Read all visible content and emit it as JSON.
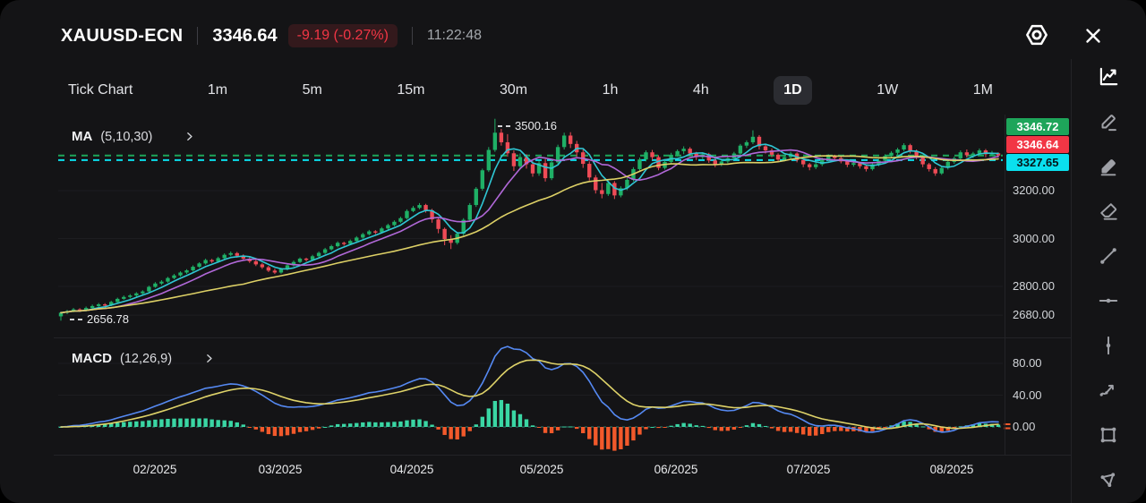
{
  "header": {
    "symbol": "XAUUSD-ECN",
    "price": "3346.64",
    "change": "-9.19 (-0.27%)",
    "time": "11:22:48"
  },
  "tabs": {
    "items": [
      {
        "label": "Tick Chart",
        "active": false
      },
      {
        "label": "1m",
        "active": false
      },
      {
        "label": "5m",
        "active": false
      },
      {
        "label": "15m",
        "active": false
      },
      {
        "label": "30m",
        "active": false
      },
      {
        "label": "1h",
        "active": false
      },
      {
        "label": "4h",
        "active": false
      },
      {
        "label": "1D",
        "active": true
      },
      {
        "label": "1W",
        "active": false
      },
      {
        "label": "1M",
        "active": false
      }
    ]
  },
  "indicators": {
    "ma": {
      "name": "MA",
      "params": "(5,10,30)"
    },
    "macd": {
      "name": "MACD",
      "params": "(12,26,9)"
    }
  },
  "annotations": {
    "high": "3500.16",
    "low": "2656.78"
  },
  "price_axis": {
    "badges": [
      {
        "text": "3346.72",
        "kind": "up"
      },
      {
        "text": "3346.64",
        "kind": "last"
      },
      {
        "text": "3327.65",
        "kind": "ref"
      }
    ]
  },
  "toolbar": {
    "tools": [
      {
        "name": "chart-style",
        "icon": "line-chart",
        "active": true
      },
      {
        "name": "draw",
        "icon": "pencil",
        "active": false
      },
      {
        "name": "draw-alt",
        "icon": "pencil-underline",
        "active": false
      },
      {
        "name": "eraser",
        "icon": "eraser",
        "active": false
      },
      {
        "name": "trend-line",
        "icon": "trend-line",
        "active": false
      },
      {
        "name": "horizontal-line",
        "icon": "horizontal-line",
        "active": false
      },
      {
        "name": "vertical-line",
        "icon": "vertical-line",
        "active": false
      },
      {
        "name": "trend-arrow",
        "icon": "trend-arrow",
        "active": false
      },
      {
        "name": "rectangle",
        "icon": "rectangle",
        "active": false
      },
      {
        "name": "polygon",
        "icon": "polygon",
        "active": false
      }
    ]
  },
  "colors": {
    "up": "#1fb066",
    "down": "#ee4b56",
    "ma5": "#2fc7d4",
    "ma10": "#b168d8",
    "ma30": "#ddd066",
    "macd_line": "#5589f2",
    "macd_signal": "#ded269",
    "hist_up": "#3ad6a4",
    "hist_down": "#f2592b",
    "level_ask": "#1ea55a",
    "level_ref": "#0ae0ee",
    "grid": "#1d1d20",
    "zero_line": "#2e8f7f"
  },
  "chart_data": {
    "type": "candlestick+macd",
    "symbol": "XAUUSD-ECN",
    "timeframe": "1D",
    "title": "XAUUSD-ECN daily candles with MA(5,10,30) overlay and MACD(12,26,9) subpanel",
    "x_labels": [
      "02/2025",
      "03/2025",
      "04/2025",
      "05/2025",
      "06/2025",
      "07/2025",
      "08/2025"
    ],
    "price_ticks": [
      3200,
      3000,
      2800,
      2680
    ],
    "macd_ticks": [
      80,
      40,
      0
    ],
    "levels": {
      "ask": 3346.72,
      "last": 3346.64,
      "ref": 3327.65
    },
    "high_annotation": 3500.16,
    "low_annotation": 2656.78,
    "ma_periods": [
      5,
      10,
      30
    ],
    "macd_params": [
      12,
      26,
      9
    ],
    "legend_position": "top-left",
    "grid": "subtle",
    "candles": [
      [
        2675,
        2695,
        2656.78,
        2690
      ],
      [
        2690,
        2702,
        2684,
        2697
      ],
      [
        2697,
        2710,
        2692,
        2704
      ],
      [
        2704,
        2709,
        2693,
        2699
      ],
      [
        2699,
        2716,
        2695,
        2710
      ],
      [
        2710,
        2724,
        2706,
        2718
      ],
      [
        2718,
        2731,
        2713,
        2725
      ],
      [
        2725,
        2730,
        2714,
        2721
      ],
      [
        2721,
        2740,
        2717,
        2735
      ],
      [
        2735,
        2753,
        2731,
        2748
      ],
      [
        2748,
        2762,
        2744,
        2756
      ],
      [
        2756,
        2768,
        2750,
        2762
      ],
      [
        2762,
        2776,
        2757,
        2771
      ],
      [
        2771,
        2784,
        2766,
        2779
      ],
      [
        2779,
        2803,
        2775,
        2798
      ],
      [
        2798,
        2818,
        2794,
        2812
      ],
      [
        2812,
        2826,
        2806,
        2820
      ],
      [
        2820,
        2840,
        2815,
        2835
      ],
      [
        2835,
        2852,
        2830,
        2846
      ],
      [
        2846,
        2863,
        2841,
        2858
      ],
      [
        2858,
        2872,
        2852,
        2867
      ],
      [
        2867,
        2888,
        2862,
        2882
      ],
      [
        2882,
        2901,
        2877,
        2896
      ],
      [
        2896,
        2916,
        2891,
        2910
      ],
      [
        2910,
        2915,
        2898,
        2904
      ],
      [
        2904,
        2924,
        2899,
        2918
      ],
      [
        2918,
        2938,
        2913,
        2932
      ],
      [
        2932,
        2946,
        2926,
        2939
      ],
      [
        2939,
        2944,
        2920,
        2928
      ],
      [
        2928,
        2934,
        2909,
        2916
      ],
      [
        2916,
        2922,
        2898,
        2905
      ],
      [
        2905,
        2911,
        2885,
        2892
      ],
      [
        2892,
        2898,
        2873,
        2880
      ],
      [
        2880,
        2886,
        2860,
        2866
      ],
      [
        2866,
        2874,
        2852,
        2858
      ],
      [
        2858,
        2878,
        2853,
        2872
      ],
      [
        2872,
        2894,
        2867,
        2888
      ],
      [
        2888,
        2908,
        2883,
        2902
      ],
      [
        2902,
        2921,
        2897,
        2916
      ],
      [
        2916,
        2920,
        2904,
        2911
      ],
      [
        2911,
        2932,
        2906,
        2926
      ],
      [
        2926,
        2946,
        2921,
        2940
      ],
      [
        2940,
        2961,
        2935,
        2955
      ],
      [
        2955,
        2974,
        2950,
        2968
      ],
      [
        2968,
        2988,
        2963,
        2982
      ],
      [
        2982,
        2987,
        2970,
        2978
      ],
      [
        2978,
        2996,
        2973,
        2990
      ],
      [
        2990,
        3010,
        2985,
        3004
      ],
      [
        3004,
        3024,
        2999,
        3018
      ],
      [
        3018,
        3036,
        3013,
        3030
      ],
      [
        3030,
        3035,
        3018,
        3026
      ],
      [
        3026,
        3048,
        3021,
        3042
      ],
      [
        3042,
        3062,
        3037,
        3056
      ],
      [
        3056,
        3076,
        3051,
        3070
      ],
      [
        3070,
        3091,
        3065,
        3085
      ],
      [
        3085,
        3122,
        3080,
        3115
      ],
      [
        3115,
        3136,
        3110,
        3128
      ],
      [
        3128,
        3148,
        3122,
        3140
      ],
      [
        3140,
        3145,
        3108,
        3118
      ],
      [
        3118,
        3124,
        3066,
        3080
      ],
      [
        3080,
        3086,
        3022,
        3040
      ],
      [
        3040,
        3046,
        2972,
        2998
      ],
      [
        2998,
        3014,
        2956,
        2982
      ],
      [
        2982,
        3028,
        2975,
        3020
      ],
      [
        3020,
        3085,
        3012,
        3078
      ],
      [
        3078,
        3148,
        3070,
        3140
      ],
      [
        3140,
        3215,
        3132,
        3208
      ],
      [
        3208,
        3292,
        3200,
        3285
      ],
      [
        3285,
        3382,
        3278,
        3370
      ],
      [
        3370,
        3500.16,
        3362,
        3442
      ],
      [
        3442,
        3458,
        3388,
        3402
      ],
      [
        3402,
        3436,
        3342,
        3356
      ],
      [
        3356,
        3368,
        3282,
        3302
      ],
      [
        3302,
        3355,
        3288,
        3340
      ],
      [
        3340,
        3352,
        3292,
        3310
      ],
      [
        3310,
        3322,
        3258,
        3272
      ],
      [
        3272,
        3325,
        3262,
        3315
      ],
      [
        3315,
        3332,
        3238,
        3252
      ],
      [
        3252,
        3328,
        3244,
        3318
      ],
      [
        3318,
        3392,
        3310,
        3382
      ],
      [
        3382,
        3442,
        3372,
        3430
      ],
      [
        3430,
        3444,
        3378,
        3395
      ],
      [
        3395,
        3408,
        3342,
        3360
      ],
      [
        3360,
        3372,
        3295,
        3312
      ],
      [
        3312,
        3322,
        3242,
        3255
      ],
      [
        3255,
        3265,
        3188,
        3202
      ],
      [
        3202,
        3232,
        3168,
        3186
      ],
      [
        3186,
        3242,
        3178,
        3232
      ],
      [
        3232,
        3240,
        3165,
        3180
      ],
      [
        3180,
        3218,
        3172,
        3210
      ],
      [
        3210,
        3252,
        3202,
        3245
      ],
      [
        3245,
        3298,
        3238,
        3290
      ],
      [
        3290,
        3338,
        3282,
        3330
      ],
      [
        3330,
        3368,
        3322,
        3360
      ],
      [
        3360,
        3370,
        3328,
        3340
      ],
      [
        3340,
        3348,
        3285,
        3295
      ],
      [
        3295,
        3328,
        3288,
        3320
      ],
      [
        3320,
        3358,
        3312,
        3350
      ],
      [
        3350,
        3372,
        3342,
        3365
      ],
      [
        3365,
        3385,
        3352,
        3375
      ],
      [
        3375,
        3382,
        3345,
        3355
      ],
      [
        3355,
        3362,
        3328,
        3340
      ],
      [
        3340,
        3360,
        3332,
        3352
      ],
      [
        3352,
        3358,
        3316,
        3326
      ],
      [
        3326,
        3334,
        3298,
        3310
      ],
      [
        3310,
        3330,
        3302,
        3322
      ],
      [
        3322,
        3342,
        3314,
        3335
      ],
      [
        3335,
        3362,
        3327,
        3355
      ],
      [
        3355,
        3395,
        3348,
        3388
      ],
      [
        3388,
        3410,
        3378,
        3402
      ],
      [
        3402,
        3452,
        3394,
        3425
      ],
      [
        3425,
        3432,
        3372,
        3385
      ],
      [
        3385,
        3392,
        3355,
        3368
      ],
      [
        3368,
        3376,
        3340,
        3350
      ],
      [
        3350,
        3356,
        3318,
        3330
      ],
      [
        3330,
        3348,
        3322,
        3340
      ],
      [
        3340,
        3362,
        3332,
        3355
      ],
      [
        3355,
        3360,
        3318,
        3328
      ],
      [
        3328,
        3335,
        3298,
        3310
      ],
      [
        3310,
        3316,
        3285,
        3298
      ],
      [
        3298,
        3318,
        3290,
        3310
      ],
      [
        3310,
        3338,
        3302,
        3330
      ],
      [
        3330,
        3352,
        3322,
        3345
      ],
      [
        3345,
        3350,
        3328,
        3336
      ],
      [
        3336,
        3342,
        3314,
        3322
      ],
      [
        3322,
        3328,
        3298,
        3308
      ],
      [
        3308,
        3322,
        3300,
        3315
      ],
      [
        3315,
        3320,
        3292,
        3302
      ],
      [
        3302,
        3308,
        3280,
        3290
      ],
      [
        3290,
        3316,
        3284,
        3310
      ],
      [
        3310,
        3332,
        3302,
        3325
      ],
      [
        3325,
        3352,
        3318,
        3345
      ],
      [
        3345,
        3365,
        3338,
        3358
      ],
      [
        3358,
        3379,
        3350,
        3372
      ],
      [
        3372,
        3398,
        3365,
        3390
      ],
      [
        3390,
        3396,
        3355,
        3365
      ],
      [
        3365,
        3372,
        3330,
        3340
      ],
      [
        3340,
        3346,
        3298,
        3310
      ],
      [
        3310,
        3316,
        3280,
        3290
      ],
      [
        3290,
        3298,
        3262,
        3272
      ],
      [
        3272,
        3302,
        3266,
        3295
      ],
      [
        3295,
        3328,
        3288,
        3320
      ],
      [
        3320,
        3342,
        3312,
        3335
      ],
      [
        3335,
        3368,
        3328,
        3360
      ],
      [
        3360,
        3372,
        3338,
        3348
      ],
      [
        3348,
        3362,
        3336,
        3355
      ],
      [
        3355,
        3376,
        3348,
        3368
      ],
      [
        3368,
        3374,
        3340,
        3352
      ],
      [
        3352,
        3366,
        3344,
        3356
      ],
      [
        3356,
        3360,
        3338,
        3346.64
      ]
    ]
  }
}
